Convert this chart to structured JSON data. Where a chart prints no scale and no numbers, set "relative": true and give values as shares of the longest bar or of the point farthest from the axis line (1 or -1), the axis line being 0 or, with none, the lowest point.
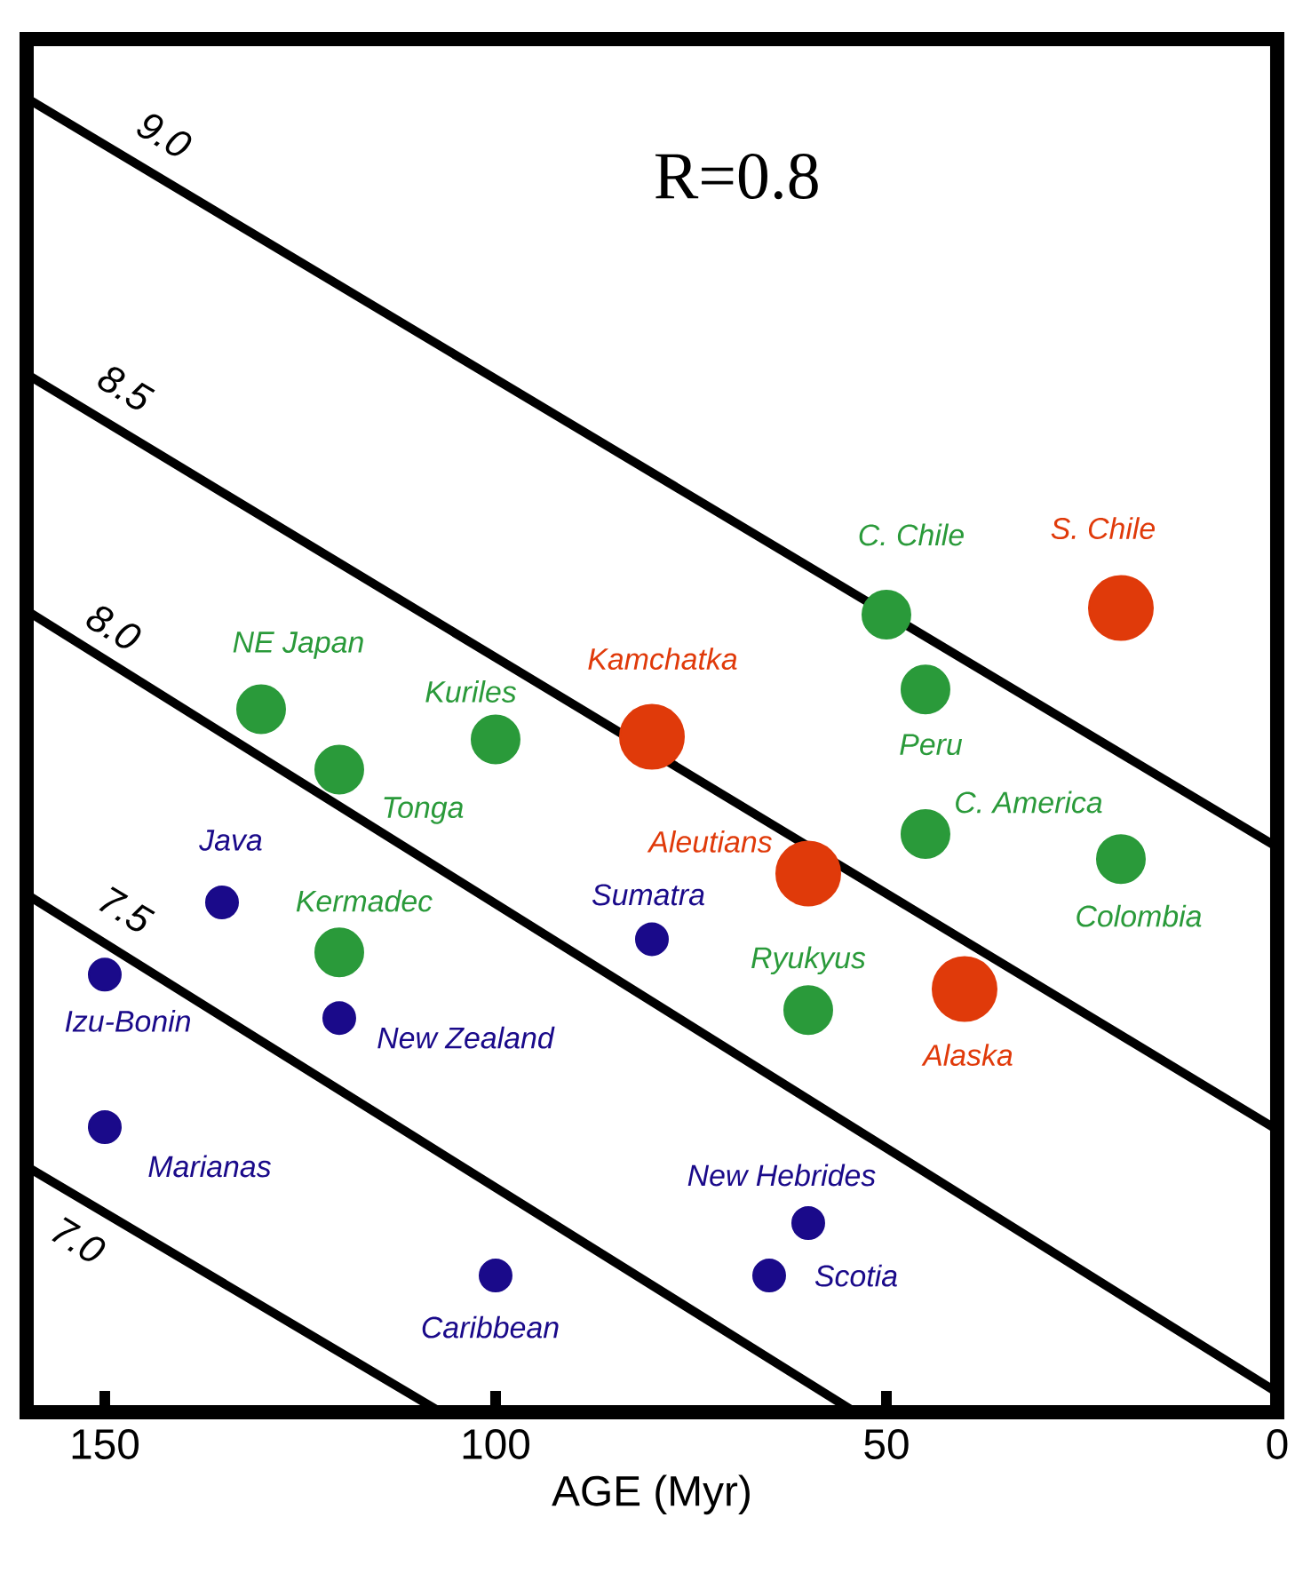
{
  "chart_data": {
    "type": "scatter",
    "relative": true,
    "xlabel": "AGE (Myr)",
    "xlim": [
      160,
      0
    ],
    "xticks": [
      150,
      100,
      50,
      0
    ],
    "series": [
      {
        "type": "line",
        "name": "9.0",
        "color": "#000000",
        "x": [
          160,
          0
        ],
        "values": [
          1.0,
          0.43
        ]
      },
      {
        "type": "line",
        "name": "8.5",
        "color": "#000000",
        "x": [
          160,
          0
        ],
        "values": [
          0.79,
          0.215
        ]
      },
      {
        "type": "line",
        "name": "8.0",
        "color": "#000000",
        "x": [
          160,
          0
        ],
        "values": [
          0.61,
          0.015
        ]
      },
      {
        "type": "line",
        "name": "7.5",
        "color": "#000000",
        "x": [
          160,
          54
        ],
        "values": [
          0.394,
          0
        ]
      },
      {
        "type": "line",
        "name": "7.0",
        "color": "#000000",
        "x": [
          160,
          107
        ],
        "values": [
          0.187,
          0
        ]
      },
      {
        "marker": "circle",
        "color": "#2a9a3a",
        "x": [
          130,
          120,
          100,
          50,
          45,
          45,
          20,
          60,
          120
        ],
        "values": [
          0.535,
          0.489,
          0.512,
          0.607,
          0.55,
          0.44,
          0.421,
          0.306,
          0.35
        ]
      },
      {
        "marker": "circle",
        "color": "#e03a0a",
        "x": [
          80,
          20,
          60,
          40
        ],
        "values": [
          0.514,
          0.612,
          0.41,
          0.322
        ]
      },
      {
        "marker": "circle",
        "color": "#1a0a8a",
        "x": [
          80,
          60,
          65,
          135,
          150,
          120,
          150,
          100
        ],
        "values": [
          0.36,
          0.144,
          0.104,
          0.388,
          0.333,
          0.3,
          0.217,
          0.104
        ]
      }
    ],
    "annotations": [
      "R=0.8",
      {
        "text": "NE Japan",
        "x": 130,
        "y": 0.535
      },
      {
        "text": "Tonga",
        "x": 120,
        "y": 0.489
      },
      {
        "text": "Kuriles",
        "x": 100,
        "y": 0.512
      },
      {
        "text": "C. Chile",
        "x": 50,
        "y": 0.607
      },
      {
        "text": "Peru",
        "x": 45,
        "y": 0.55
      },
      {
        "text": "C. America",
        "x": 45,
        "y": 0.44
      },
      {
        "text": "Colombia",
        "x": 20,
        "y": 0.421
      },
      {
        "text": "Ryukyus",
        "x": 60,
        "y": 0.306
      },
      {
        "text": "Kermadec",
        "x": 120,
        "y": 0.35
      },
      {
        "text": "Kamchatka",
        "x": 80,
        "y": 0.514
      },
      {
        "text": "S. Chile",
        "x": 20,
        "y": 0.612
      },
      {
        "text": "Aleutians",
        "x": 60,
        "y": 0.41
      },
      {
        "text": "Alaska",
        "x": 40,
        "y": 0.322
      },
      {
        "text": "Sumatra",
        "x": 80,
        "y": 0.36
      },
      {
        "text": "New Hebrides",
        "x": 60,
        "y": 0.144
      },
      {
        "text": "Scotia",
        "x": 65,
        "y": 0.104
      },
      {
        "text": "Java",
        "x": 135,
        "y": 0.388
      },
      {
        "text": "Izu-Bonin",
        "x": 150,
        "y": 0.333
      },
      {
        "text": "New Zealand",
        "x": 120,
        "y": 0.3
      },
      {
        "text": "Marianas",
        "x": 150,
        "y": 0.217
      },
      {
        "text": "Caribbean",
        "x": 100,
        "y": 0.104
      }
    ]
  }
}
